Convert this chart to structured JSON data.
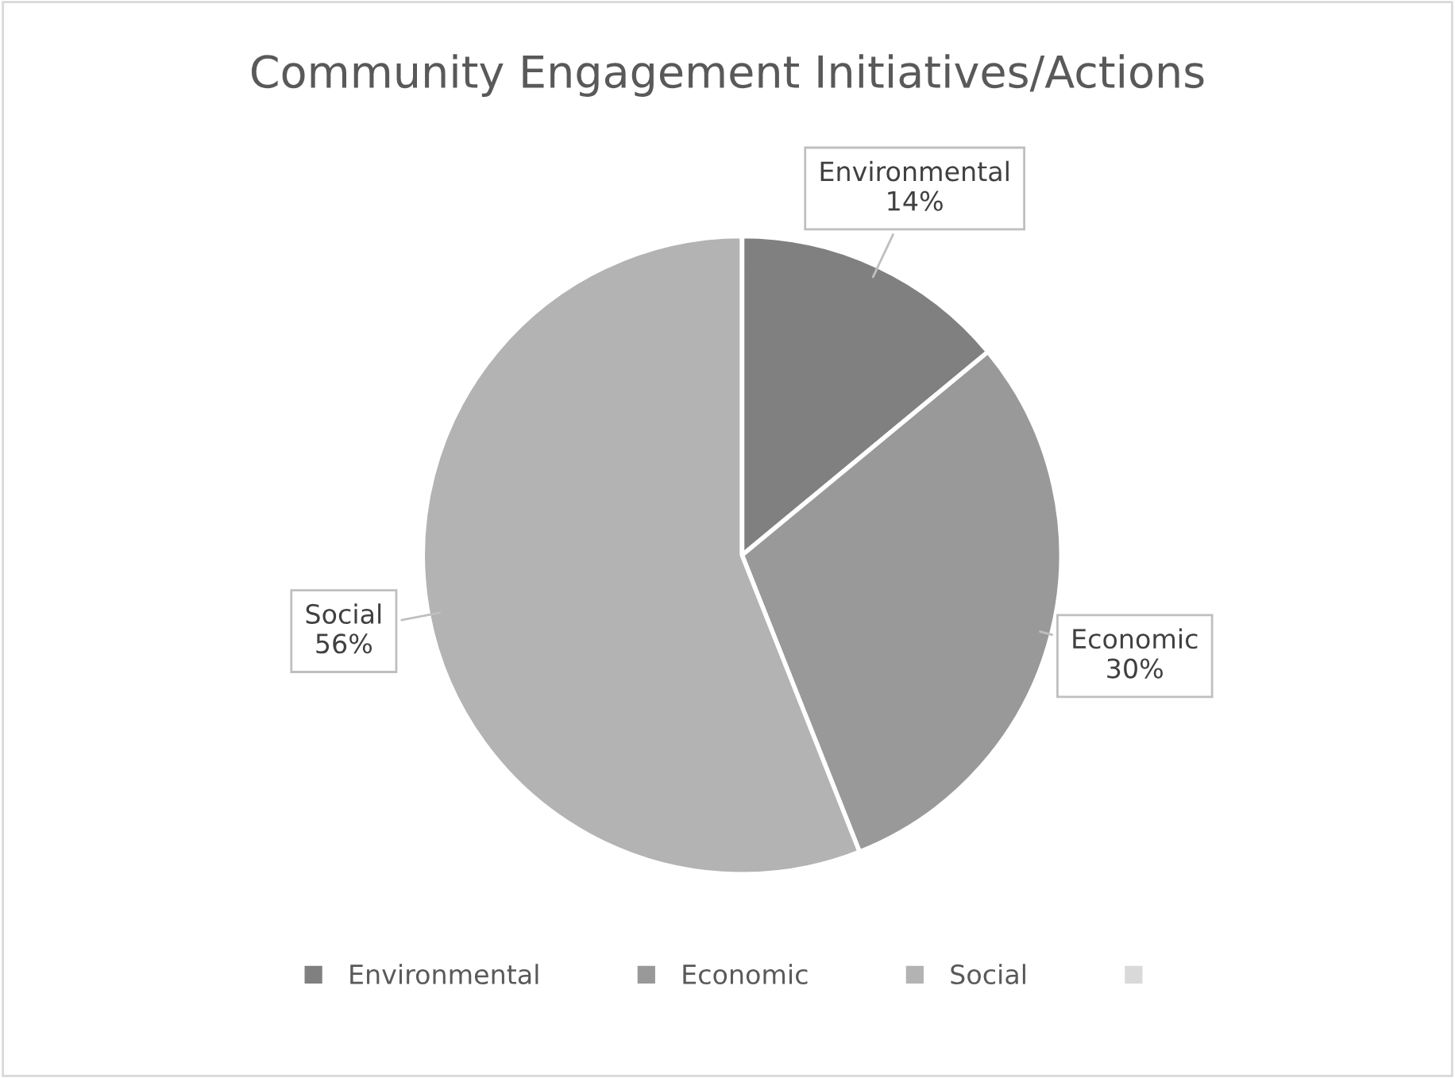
{
  "chart_data": {
    "type": "pie",
    "title": "Community Engagement Initiatives/Actions",
    "categories": [
      "Environmental",
      "Economic",
      "Social",
      null
    ],
    "values": [
      14,
      30,
      56,
      0
    ],
    "colors": [
      "#808080",
      "#999999",
      "#b3b3b3",
      "#d9d9d9"
    ],
    "value_labels": [
      "14%",
      "30%",
      "56%",
      null
    ],
    "legend": "bottom"
  }
}
